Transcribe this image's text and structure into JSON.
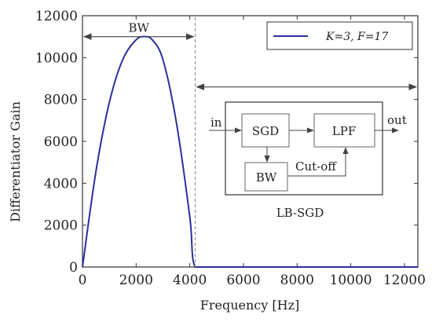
{
  "chart_data": {
    "type": "line",
    "xlabel": "Frequency [Hz]",
    "ylabel": "Differentiator Gain",
    "xlim": [
      0,
      12500
    ],
    "ylim": [
      0,
      12000
    ],
    "x_ticks": [
      0,
      2000,
      4000,
      6000,
      8000,
      10000,
      12000
    ],
    "y_ticks": [
      0,
      2000,
      4000,
      6000,
      8000,
      10000,
      12000
    ],
    "x_tick_labels": [
      "0",
      "2000",
      "4000",
      "6000",
      "8000",
      "10000",
      "12000"
    ],
    "y_tick_labels": [
      "0",
      "2000",
      "4000",
      "6000",
      "8000",
      "10000",
      "12000"
    ],
    "series": [
      {
        "name": "K=3, F=17",
        "color": "#2b2f9e",
        "x": [
          0,
          500,
          1000,
          1500,
          2000,
          2300,
          2600,
          3000,
          3500,
          4000,
          4200,
          5000,
          6000,
          8000,
          10000,
          12000,
          12500
        ],
        "y": [
          0,
          4550,
          7850,
          9900,
          10850,
          11000,
          10850,
          9900,
          6900,
          2400,
          0,
          0,
          0,
          0,
          0,
          0,
          0
        ]
      }
    ],
    "legend": {
      "placement": "top-right",
      "label": "K=3, F=17"
    },
    "annotations": {
      "bw_label": "BW",
      "bw_range": [
        0,
        4200
      ],
      "stop_range": [
        4200,
        12500
      ],
      "cutoff_x": 4200
    },
    "grid": false
  },
  "diagram": {
    "input_label": "in",
    "sgd_label": "SGD",
    "lpf_label": "LPF",
    "output_label": "out",
    "bw_block_label": "BW",
    "cutoff_label": "Cut-off",
    "caption": "LB-SGD"
  }
}
